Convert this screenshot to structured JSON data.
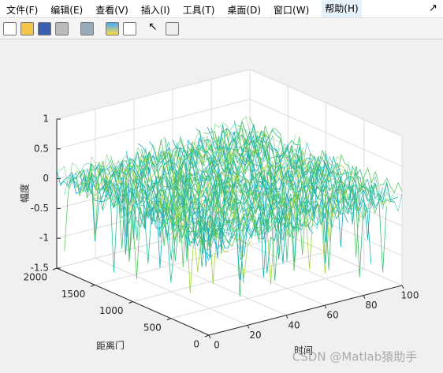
{
  "menu": [
    "文件(F)",
    "编辑(E)",
    "查看(V)",
    "插入(I)",
    "工具(T)",
    "桌面(D)",
    "窗口(W)",
    "帮助(H)"
  ],
  "chart_data": {
    "type": "surface3d",
    "zlabel": "幅度",
    "ylabel": "距离门",
    "xlabel": "时间",
    "xlim": [
      0,
      100
    ],
    "xticks": [
      0,
      20,
      40,
      60,
      80,
      100
    ],
    "ylim": [
      0,
      2000
    ],
    "yticks": [
      0,
      500,
      1000,
      1500,
      2000
    ],
    "zlim": [
      -1.5,
      1
    ],
    "zticks": [
      -1.5,
      -1,
      -0.5,
      0,
      0.5,
      1
    ],
    "grid": true
  },
  "watermark": "CSDN @Matlab猿助手"
}
